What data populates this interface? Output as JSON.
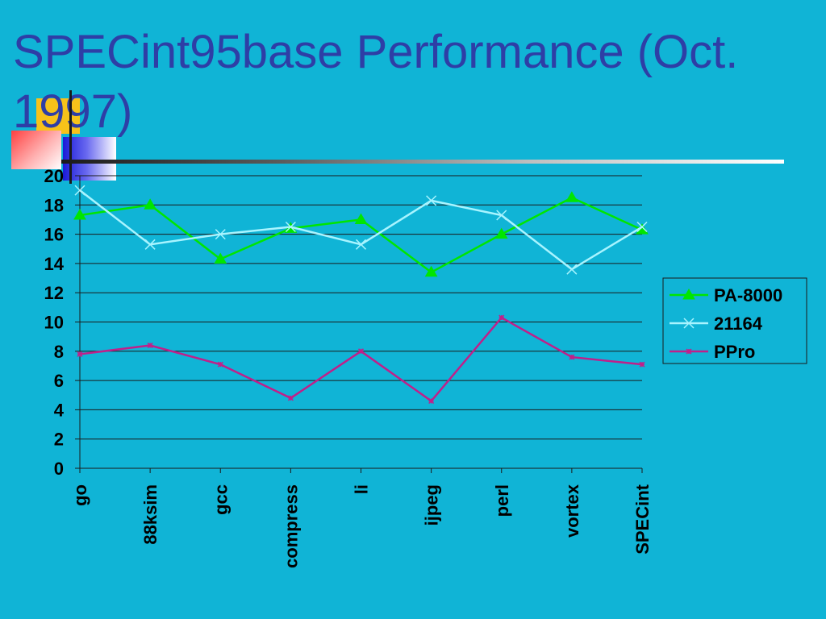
{
  "slide": {
    "title": "SPECint95base Performance (Oct. 1997)"
  },
  "colors": {
    "background": "#10b4d6",
    "title": "#2e3ea6",
    "pa8000": "#00e600",
    "alpha21164": "#a8f4ff",
    "ppro": "#c0208a"
  },
  "chart_data": {
    "type": "line",
    "categories": [
      "go",
      "88ksim",
      "gcc",
      "compress",
      "li",
      "ijpeg",
      "perl",
      "vortex",
      "SPECint"
    ],
    "series": [
      {
        "name": "PA-8000",
        "values": [
          17.3,
          18.0,
          14.3,
          16.4,
          17.0,
          13.4,
          16.0,
          18.5,
          16.3
        ],
        "color": "#00e600",
        "marker": "triangle"
      },
      {
        "name": "21164",
        "values": [
          19.0,
          15.3,
          16.0,
          16.5,
          15.3,
          18.3,
          17.3,
          13.6,
          16.5
        ],
        "color": "#a8f4ff",
        "marker": "x"
      },
      {
        "name": "PPro",
        "values": [
          7.8,
          8.4,
          7.1,
          4.8,
          8.0,
          4.6,
          10.3,
          7.6,
          7.1
        ],
        "color": "#c0208a",
        "marker": "star"
      }
    ],
    "ylim": [
      0,
      20
    ],
    "yticks": [
      "0",
      "2",
      "4",
      "6",
      "8",
      "10",
      "12",
      "14",
      "16",
      "18",
      "20"
    ],
    "grid": true,
    "legend_position": "right"
  }
}
